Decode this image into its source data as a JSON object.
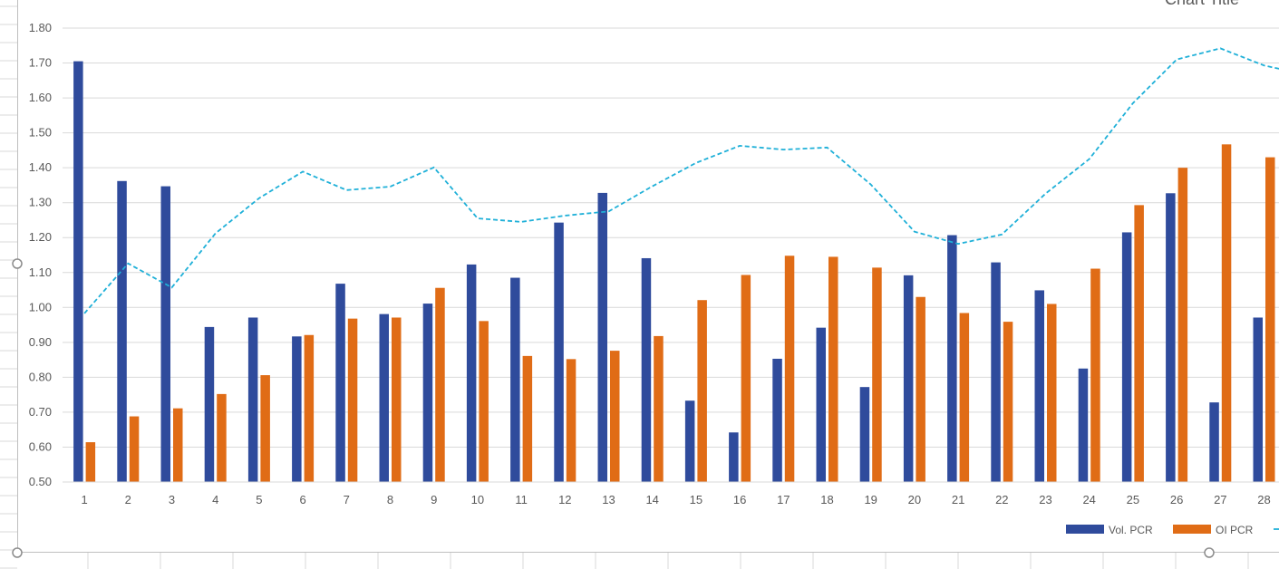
{
  "chart_data": {
    "type": "bar",
    "title": "Chart Title",
    "xlabel": "",
    "ylabel": "",
    "categories": [
      "1",
      "2",
      "3",
      "4",
      "5",
      "6",
      "7",
      "8",
      "9",
      "10",
      "11",
      "12",
      "13",
      "14",
      "15",
      "16",
      "17",
      "18",
      "19",
      "20",
      "21",
      "22",
      "23",
      "24",
      "25",
      "26",
      "27",
      "28"
    ],
    "ylim": [
      0.5,
      1.8
    ],
    "yticks": [
      "0.50",
      "0.60",
      "0.70",
      "0.80",
      "0.90",
      "1.00",
      "1.10",
      "1.20",
      "1.30",
      "1.40",
      "1.50",
      "1.60",
      "1.70",
      "1.80"
    ],
    "grid": true,
    "legend_position": "bottom-right",
    "series": [
      {
        "name": "Vol. PCR",
        "kind": "bar",
        "color": "#2f4b9c",
        "values": [
          1.705,
          1.362,
          1.347,
          0.944,
          0.971,
          0.917,
          1.068,
          0.981,
          1.011,
          1.123,
          1.085,
          1.243,
          1.328,
          1.141,
          0.733,
          0.642,
          0.853,
          0.942,
          0.772,
          1.092,
          1.207,
          1.129,
          1.049,
          0.825,
          1.215,
          1.327,
          0.728,
          0.971
        ]
      },
      {
        "name": "OI PCR",
        "kind": "bar",
        "color": "#e06c16",
        "values": [
          0.614,
          0.688,
          0.711,
          0.752,
          0.806,
          0.921,
          0.968,
          0.971,
          1.056,
          0.961,
          0.861,
          0.852,
          0.876,
          0.918,
          1.021,
          1.093,
          1.148,
          1.145,
          1.114,
          1.03,
          0.984,
          0.959,
          1.01,
          1.111,
          1.293,
          1.4,
          1.467,
          1.43
        ]
      },
      {
        "kind": "line",
        "dashed": true,
        "color": "#1fb0d8",
        "values": [
          0.983,
          1.126,
          1.057,
          1.212,
          1.313,
          1.389,
          1.336,
          1.346,
          1.401,
          1.255,
          1.245,
          1.263,
          1.275,
          1.347,
          1.414,
          1.463,
          1.452,
          1.458,
          1.352,
          1.217,
          1.182,
          1.209,
          1.326,
          1.425,
          1.585,
          1.71,
          1.742,
          1.693
        ]
      }
    ]
  }
}
